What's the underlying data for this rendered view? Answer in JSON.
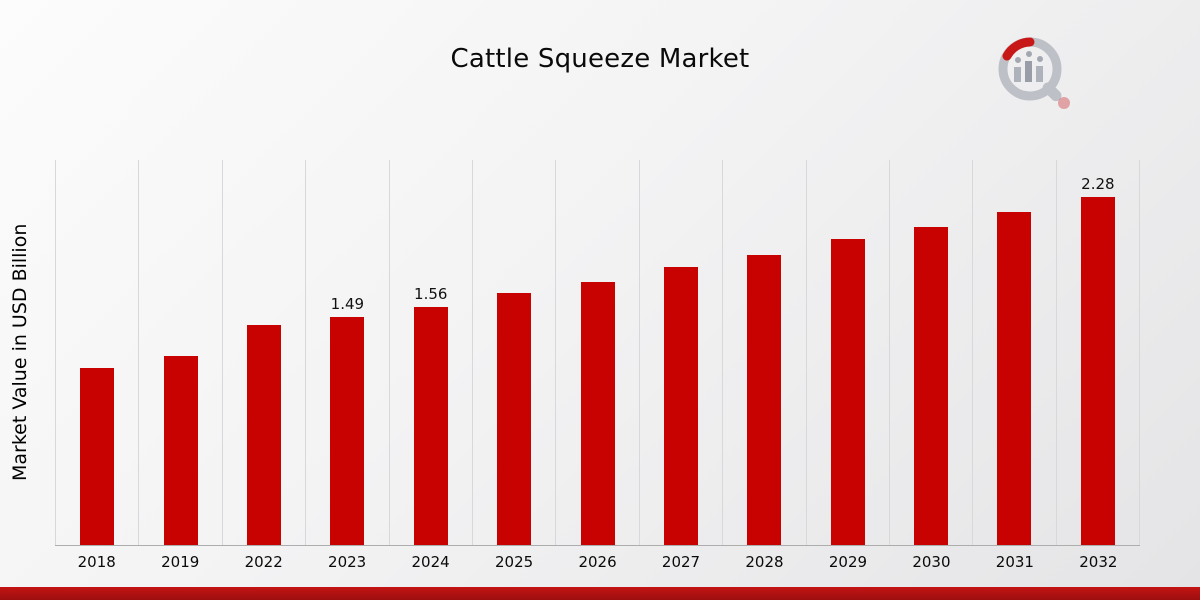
{
  "page": {
    "title": "Cattle Squeeze Market",
    "ylabel": "Market Value in USD Billion"
  },
  "chart_data": {
    "type": "bar",
    "title": "Cattle Squeeze Market",
    "xlabel": "",
    "ylabel": "Market Value in USD Billion",
    "categories": [
      "2018",
      "2019",
      "2022",
      "2023",
      "2024",
      "2025",
      "2026",
      "2027",
      "2028",
      "2029",
      "2030",
      "2031",
      "2032"
    ],
    "values": [
      1.16,
      1.24,
      1.44,
      1.49,
      1.56,
      1.65,
      1.72,
      1.82,
      1.9,
      2.0,
      2.08,
      2.18,
      2.28
    ],
    "labels": [
      "",
      "",
      "",
      "1.49",
      "1.56",
      "",
      "",
      "",
      "",
      "",
      "",
      "",
      "2.28"
    ],
    "ylim": [
      0,
      2.52
    ],
    "bar_color": "#c80101",
    "grid": "vertical-column-separators",
    "legend": "none"
  },
  "branding": {
    "logo": "market-research-future-logo"
  },
  "footer": {
    "bar_color": "#b31212"
  }
}
